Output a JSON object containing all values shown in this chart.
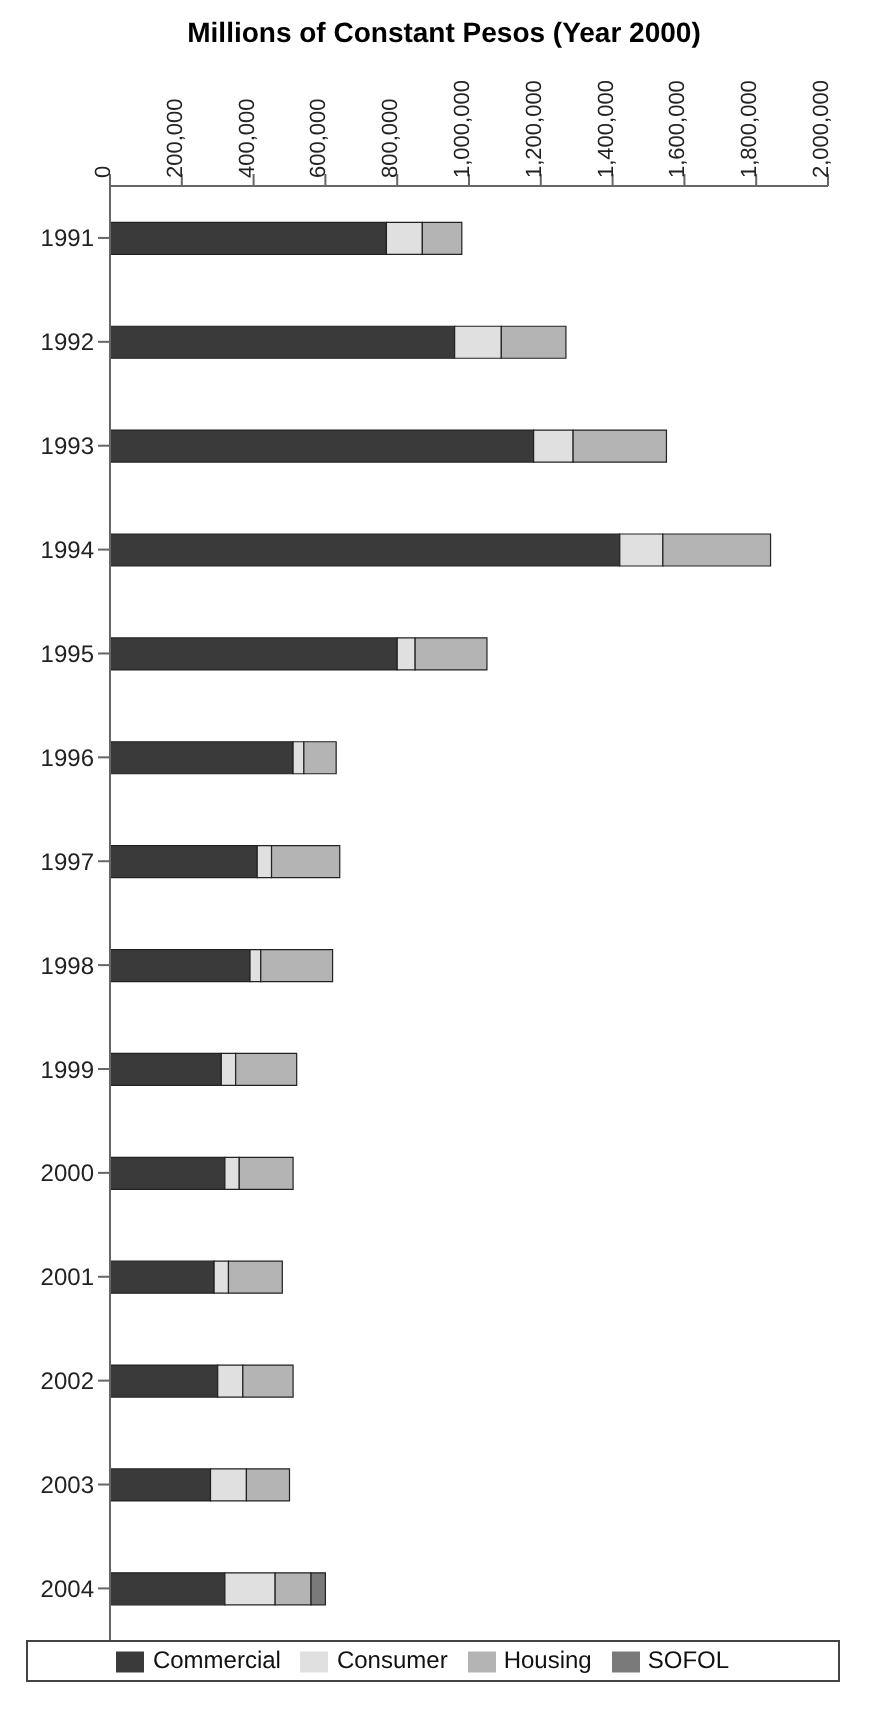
{
  "chart_data": {
    "type": "bar",
    "orientation": "horizontal",
    "stacked": true,
    "xlabel": "Millions of Constant Pesos (Year 2000)",
    "categories": [
      "1991",
      "1992",
      "1993",
      "1994",
      "1995",
      "1996",
      "1997",
      "1998",
      "1999",
      "2000",
      "2001",
      "2002",
      "2003",
      "2004"
    ],
    "series": [
      {
        "name": "Commercial",
        "color": "#3a3a3a",
        "values": [
          770000,
          960000,
          1180000,
          1420000,
          800000,
          510000,
          410000,
          390000,
          310000,
          320000,
          290000,
          300000,
          280000,
          320000
        ]
      },
      {
        "name": "Consumer",
        "color": "#e0e0e0",
        "values": [
          100000,
          130000,
          110000,
          120000,
          50000,
          30000,
          40000,
          30000,
          40000,
          40000,
          40000,
          70000,
          100000,
          140000
        ]
      },
      {
        "name": "Housing",
        "color": "#b4b4b4",
        "values": [
          110000,
          180000,
          260000,
          300000,
          200000,
          90000,
          190000,
          200000,
          170000,
          150000,
          150000,
          140000,
          120000,
          100000
        ]
      },
      {
        "name": "SOFOL",
        "color": "#7a7a7a",
        "values": [
          null,
          null,
          null,
          null,
          null,
          null,
          null,
          null,
          null,
          null,
          null,
          null,
          null,
          40000
        ]
      }
    ],
    "xlim": [
      0,
      2000000
    ],
    "xticks": [
      0,
      {
        "value": 200000,
        "label": "200,000"
      },
      {
        "value": 400000,
        "label": "400,000"
      },
      {
        "value": 600000,
        "label": "600,000"
      },
      {
        "value": 800000,
        "label": "800,000"
      },
      {
        "value": 1000000,
        "label": "1,000,000"
      },
      {
        "value": 1200000,
        "label": "1,200,000"
      },
      {
        "value": 1400000,
        "label": "1,400,000"
      },
      {
        "value": 1600000,
        "label": "1,600,000"
      },
      {
        "value": 1800000,
        "label": "1,800,000"
      },
      {
        "value": 2000000,
        "label": "2,000,000"
      }
    ],
    "legend": "bottom",
    "grid": false
  }
}
